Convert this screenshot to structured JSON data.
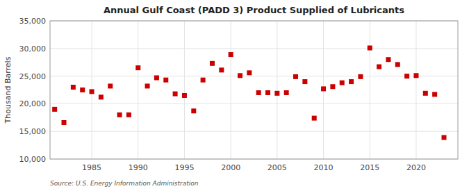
{
  "chart_data": {
    "type": "scatter",
    "title": "Annual Gulf Coast (PADD 3) Product Supplied of Lubricants",
    "ylabel": "Thousand Barrels",
    "annotations": [
      "Source: U.S. Energy Information Administration"
    ],
    "color": "#cc0000",
    "marker": "square",
    "grid": true,
    "xlim": [
      1980.5,
      2024.5
    ],
    "xticks": [
      1985,
      1990,
      1995,
      2000,
      2005,
      2010,
      2015,
      2020
    ],
    "ylim": [
      10000,
      35000
    ],
    "yticks": [
      {
        "value": 10000,
        "label": "10,000"
      },
      {
        "value": 15000,
        "label": "15,000"
      },
      {
        "value": 20000,
        "label": "20,000"
      },
      {
        "value": 25000,
        "label": "25,000"
      },
      {
        "value": 30000,
        "label": "30,000"
      },
      {
        "value": 35000,
        "label": "35,000"
      }
    ],
    "x": [
      1981,
      1982,
      1983,
      1984,
      1985,
      1986,
      1987,
      1988,
      1989,
      1990,
      1991,
      1992,
      1993,
      1994,
      1995,
      1996,
      1997,
      1998,
      1999,
      2000,
      2001,
      2002,
      2003,
      2004,
      2005,
      2006,
      2007,
      2008,
      2009,
      2010,
      2011,
      2012,
      2013,
      2014,
      2015,
      2016,
      2017,
      2018,
      2019,
      2020,
      2021,
      2022,
      2023
    ],
    "values": [
      19000,
      16600,
      23000,
      22500,
      22200,
      21200,
      23200,
      18000,
      18000,
      26500,
      23200,
      24700,
      24300,
      21800,
      21500,
      18700,
      24300,
      27300,
      26100,
      28900,
      25100,
      25600,
      22000,
      22000,
      21900,
      22000,
      24900,
      24000,
      17400,
      22700,
      23100,
      23800,
      24000,
      24900,
      30100,
      26700,
      28000,
      27100,
      25000,
      25100,
      21900,
      21700,
      13900
    ]
  }
}
